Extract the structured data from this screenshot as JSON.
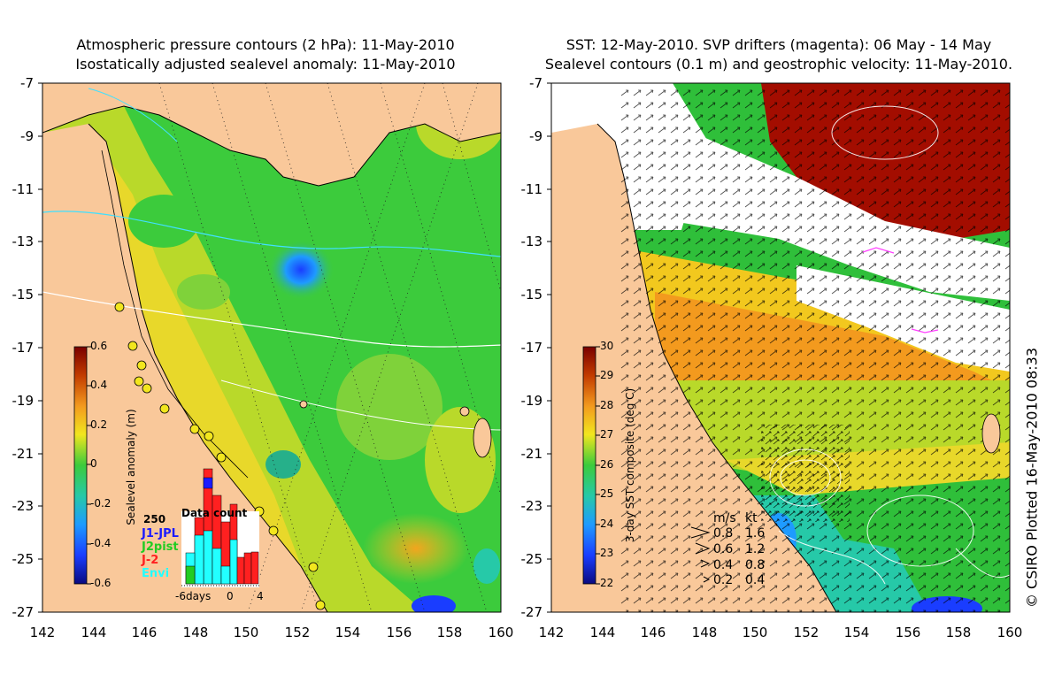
{
  "left_panel": {
    "title_line1": "Atmospheric pressure contours (2 hPa): 11-May-2010",
    "title_line2": "Isostatically adjusted sealevel anomaly: 11-May-2010",
    "colorbar_label": "Sealevel anomaly (m)",
    "colorbar_ticks": [
      "0.6",
      "0.4",
      "0.2",
      "0",
      "-0.2",
      "-0.4",
      "-0.6"
    ],
    "inset": {
      "title": "Data count",
      "ymax_label": "250",
      "legend": [
        {
          "label": "J1-JPL",
          "color": "#1a1aff"
        },
        {
          "label": "J2pist",
          "color": "#22cc22"
        },
        {
          "label": "J-2",
          "color": "#ff2020"
        },
        {
          "label": "Envi",
          "color": "#22ffff"
        }
      ],
      "x_ticks": [
        "-6days",
        "0",
        "4"
      ]
    }
  },
  "right_panel": {
    "title_line1": "SST: 12-May-2010. SVP drifters (magenta): 06 May - 14 May",
    "title_line2": "Sealevel contours (0.1 m) and geostrophic velocity: 11-May-2010.",
    "colorbar_label": "3-day SST composite (deg C)",
    "colorbar_ticks": [
      "30",
      "29",
      "28",
      "27",
      "26",
      "25",
      "24",
      "23",
      "22"
    ],
    "velocity_legend": {
      "header_ms": "m/s",
      "header_kt": "kt",
      "rows": [
        {
          "ms": "0.8",
          "kt": "1.6"
        },
        {
          "ms": "0.6",
          "kt": "1.2"
        },
        {
          "ms": "0.4",
          "kt": "0.8"
        },
        {
          "ms": "0.2",
          "kt": "0.4"
        }
      ]
    }
  },
  "axes": {
    "y_ticks": [
      "-7",
      "-9",
      "-11",
      "-13",
      "-15",
      "-17",
      "-19",
      "-21",
      "-23",
      "-25",
      "-27"
    ],
    "x_ticks": [
      "142",
      "144",
      "146",
      "148",
      "150",
      "152",
      "154",
      "156",
      "158",
      "160"
    ]
  },
  "credit": "© CSIRO Plotted 16-May-2010 08:33",
  "colors": {
    "land": "#f9c89a",
    "sla_green": "#3ccb3c",
    "sst_red": "#a30d00"
  }
}
